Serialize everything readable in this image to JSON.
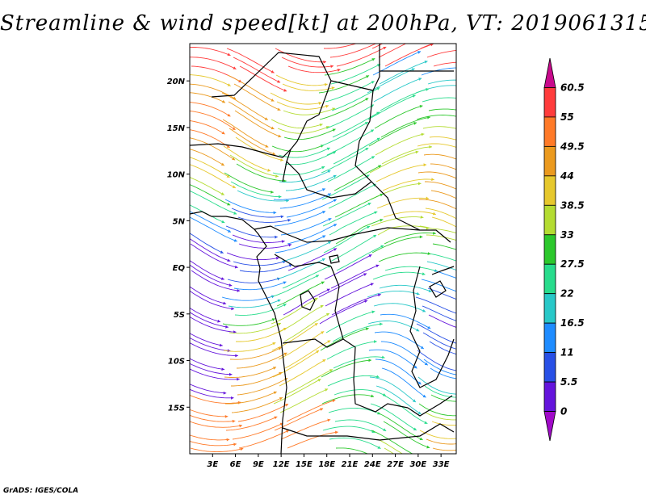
{
  "title": "Streamline & wind speed[kt] at 200hPa, VT: 2019061315",
  "footer": "GrADS: IGES/COLA",
  "map": {
    "lon_range": [
      0,
      35
    ],
    "lat_range": [
      -20,
      24
    ],
    "lat_ticks": [
      {
        "value": 20,
        "label": "20N"
      },
      {
        "value": 15,
        "label": "15N"
      },
      {
        "value": 10,
        "label": "10N"
      },
      {
        "value": 5,
        "label": "5N"
      },
      {
        "value": 0,
        "label": "EQ"
      },
      {
        "value": -5,
        "label": "5S"
      },
      {
        "value": -10,
        "label": "10S"
      },
      {
        "value": -15,
        "label": "15S"
      }
    ],
    "lon_ticks": [
      {
        "value": 3,
        "label": "3E"
      },
      {
        "value": 6,
        "label": "6E"
      },
      {
        "value": 9,
        "label": "9E"
      },
      {
        "value": 12,
        "label": "12E"
      },
      {
        "value": 15,
        "label": "15E"
      },
      {
        "value": 18,
        "label": "18E"
      },
      {
        "value": 21,
        "label": "21E"
      },
      {
        "value": 24,
        "label": "24E"
      },
      {
        "value": 27,
        "label": "27E"
      },
      {
        "value": 30,
        "label": "30E"
      },
      {
        "value": 33,
        "label": "33E"
      }
    ]
  },
  "colorbar": {
    "labels": [
      "60.5",
      "55",
      "49.5",
      "44",
      "38.5",
      "33",
      "27.5",
      "22",
      "16.5",
      "11",
      "5.5",
      "0"
    ],
    "colors": [
      "#c80a8c",
      "#ff3c3c",
      "#ff7a28",
      "#eb9a1e",
      "#e6c82d",
      "#b4dc32",
      "#2cc82c",
      "#28dc8c",
      "#28c8c8",
      "#1e8cff",
      "#2850e6",
      "#6414dc",
      "#a00ac8"
    ]
  }
}
